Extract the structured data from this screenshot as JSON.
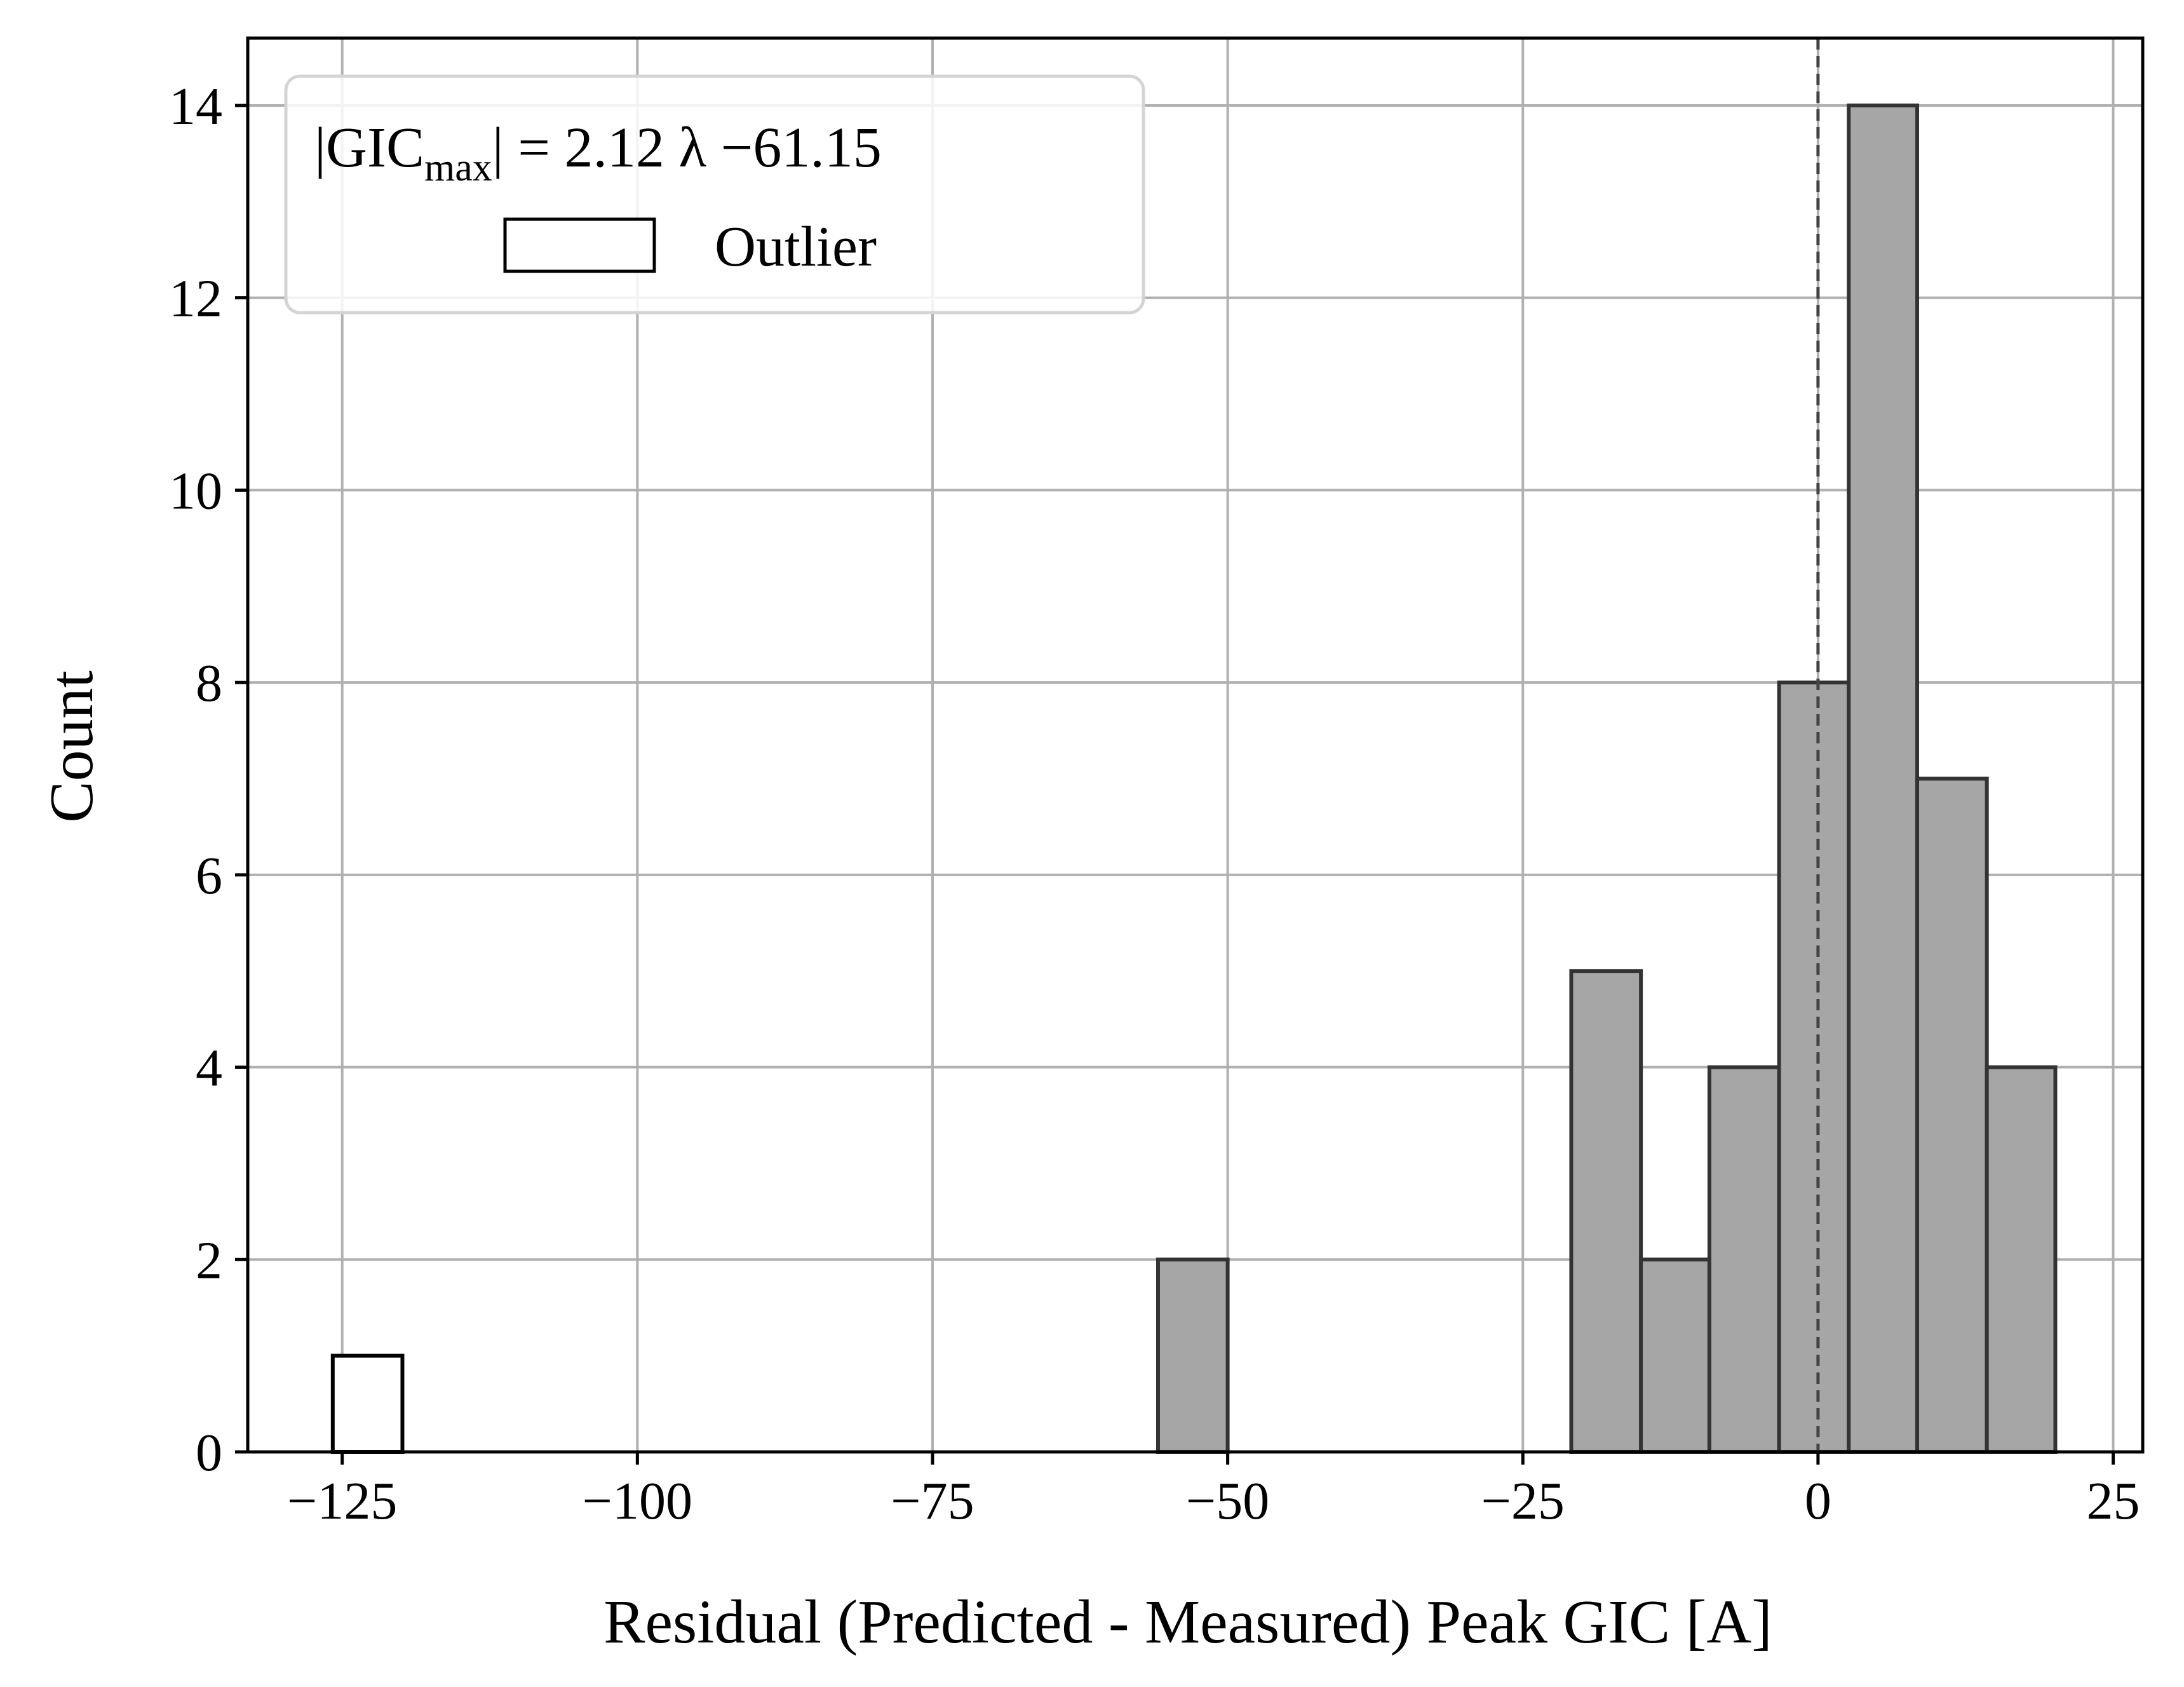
{
  "chart_data": {
    "type": "bar",
    "xlabel": "Residual (Predicted - Measured) Peak GIC [A]",
    "ylabel": "Count",
    "xlim": [
      -133.0,
      27.5
    ],
    "ylim": [
      0,
      14.7
    ],
    "xticks": [
      -125,
      -100,
      -75,
      -50,
      -25,
      0,
      25
    ],
    "xtick_labels": [
      "−125",
      "−100",
      "−75",
      "−50",
      "−25",
      "0",
      "25"
    ],
    "yticks": [
      0,
      2,
      4,
      6,
      8,
      10,
      12,
      14
    ],
    "ytick_labels": [
      "0",
      "2",
      "4",
      "6",
      "8",
      "10",
      "12",
      "14"
    ],
    "grid": true,
    "reference_line_x": 0,
    "legend": {
      "position": "top-left",
      "equation": {
        "lhs_open": "|GIC",
        "subscript": "max",
        "rhs": "| = 2.12 λ −61.15"
      },
      "entries": [
        {
          "label": "Outlier"
        }
      ]
    },
    "series": [
      {
        "bins": [
          {
            "x0": -55.9,
            "x1": -50.0,
            "count": 2
          },
          {
            "x0": -20.9,
            "x1": -15.0,
            "count": 5
          },
          {
            "x0": -15.0,
            "x1": -9.2,
            "count": 2
          },
          {
            "x0": -9.2,
            "x1": -3.3,
            "count": 4
          },
          {
            "x0": -3.3,
            "x1": 2.6,
            "count": 8
          },
          {
            "x0": 2.6,
            "x1": 8.4,
            "count": 14
          },
          {
            "x0": 8.4,
            "x1": 14.3,
            "count": 7
          },
          {
            "x0": 14.3,
            "x1": 20.1,
            "count": 4
          }
        ]
      },
      {
        "name": "Outlier",
        "bins": [
          {
            "x0": -125.8,
            "x1": -119.9,
            "count": 1
          }
        ]
      }
    ],
    "colors": {
      "bar_fill": "#a6a6a6",
      "bar_edge": "#333333",
      "outlier_fill": "#ffffff",
      "outlier_edge": "#000000",
      "grid": "#b0b0b0",
      "reference_line": "#444444"
    }
  }
}
